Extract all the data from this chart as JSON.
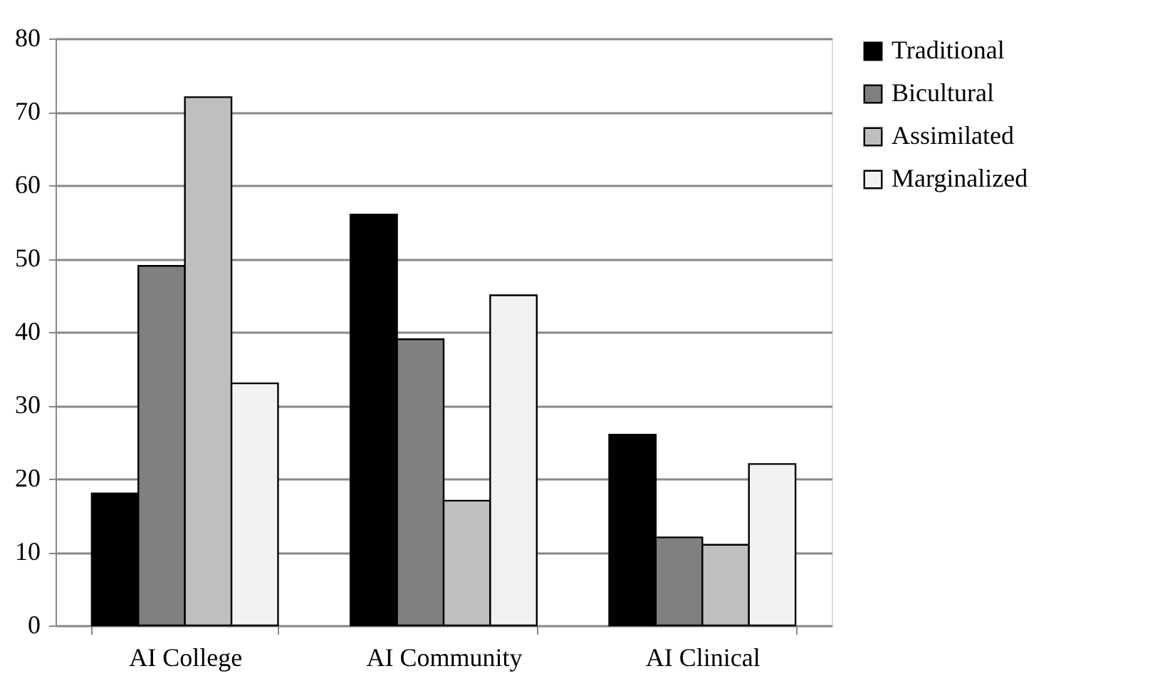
{
  "chart_data": {
    "type": "bar",
    "categories": [
      "AI College",
      "AI Community",
      "AI Clinical"
    ],
    "series": [
      {
        "name": "Traditional",
        "color": "#000000",
        "values": [
          18,
          56,
          26
        ]
      },
      {
        "name": "Bicultural",
        "color": "#808080",
        "values": [
          49,
          39,
          12
        ]
      },
      {
        "name": "Assimilated",
        "color": "#bfbfbf",
        "values": [
          72,
          17,
          11
        ]
      },
      {
        "name": "Marginalized",
        "color": "#f2f2f2",
        "values": [
          33,
          45,
          22
        ]
      }
    ],
    "ylim": [
      0,
      80
    ],
    "yticks": [
      0,
      10,
      20,
      30,
      40,
      50,
      60,
      70,
      80
    ],
    "grid": "y",
    "legend": "right"
  }
}
